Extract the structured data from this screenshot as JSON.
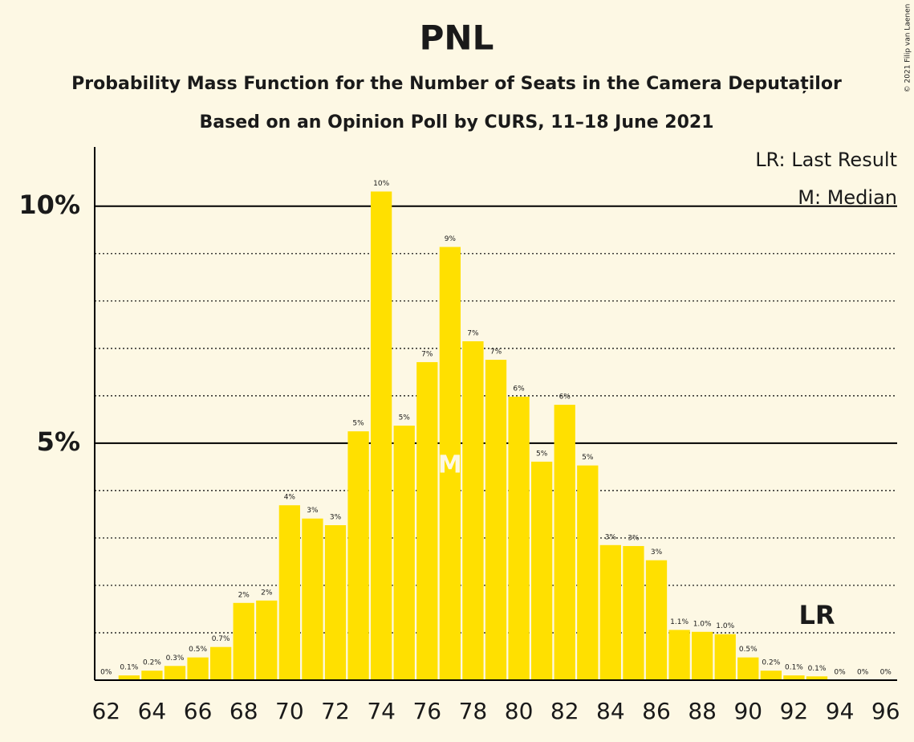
{
  "chart_data": {
    "type": "bar",
    "title": "PNL",
    "subtitle": "Probability Mass Function for the Number of Seats in the Camera Deputaților",
    "subtitle2": "Based on an Opinion Poll by CURS, 11–18 June 2021",
    "copyright": "© 2021 Filip van Laenen",
    "x": [
      62,
      63,
      64,
      65,
      66,
      67,
      68,
      69,
      70,
      71,
      72,
      73,
      74,
      75,
      76,
      77,
      78,
      79,
      80,
      81,
      82,
      83,
      84,
      85,
      86,
      87,
      88,
      89,
      90,
      91,
      92,
      93,
      94,
      95,
      96
    ],
    "values": [
      0,
      0.1,
      0.2,
      0.3,
      0.48,
      0.7,
      1.63,
      1.68,
      3.69,
      3.41,
      3.27,
      5.25,
      10.31,
      5.37,
      6.71,
      9.14,
      7.15,
      6.76,
      5.98,
      4.61,
      5.81,
      4.53,
      2.85,
      2.83,
      2.53,
      1.06,
      1.02,
      0.97,
      0.48,
      0.2,
      0.1,
      0.08,
      0,
      0,
      0
    ],
    "value_labels": [
      "0%",
      "0.1%",
      "0.2%",
      "0.3%",
      "0.5%",
      "0.7%",
      "2%",
      "2%",
      "4%",
      "3%",
      "3%",
      "5%",
      "10%",
      "5%",
      "7%",
      "9%",
      "7%",
      "7%",
      "6%",
      "5%",
      "6%",
      "5%",
      "3%",
      "3%",
      "3%",
      "1.1%",
      "1.0%",
      "1.0%",
      "0.5%",
      "0.2%",
      "0.1%",
      "0.1%",
      "0%",
      "0%",
      "0%"
    ],
    "color": "#ffe000",
    "xlim": [
      61.5,
      96.5
    ],
    "xticks": [
      62,
      64,
      66,
      68,
      70,
      72,
      74,
      76,
      78,
      80,
      82,
      84,
      86,
      88,
      90,
      92,
      94,
      96
    ],
    "ylim": [
      0,
      11.25
    ],
    "yticks": [
      {
        "value": 5,
        "label": "5%"
      },
      {
        "value": 10,
        "label": "10%"
      }
    ],
    "minor_yticks": [
      1,
      2,
      3,
      4,
      6,
      7,
      8,
      9
    ],
    "median": {
      "x": 77,
      "label": "M"
    },
    "last_result": {
      "x": 93,
      "label": "LR"
    },
    "legend": [
      "LR: Last Result",
      "M: Median"
    ]
  }
}
